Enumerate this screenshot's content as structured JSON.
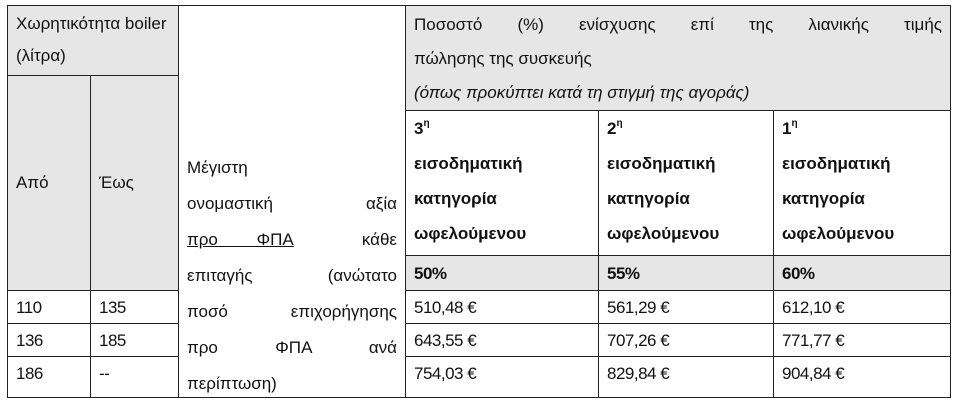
{
  "header": {
    "capacity_title": "Χωρητικότητα boiler (λίτρα)",
    "from_label": "Από",
    "to_label": "Έως",
    "max_value_lines": [
      "Μέγιστη",
      "ονομαστική αξία",
      "προ ΦΠΑ κάθε",
      "επιταγής (ανώτατο",
      "ποσό επιχορήγησης",
      "προ ΦΠΑ ανά",
      "περίπτωση)"
    ],
    "percentage_title": "Ποσοστό (%) ενίσχυσης  επί της λιανικής τιμής πώλησης της συσκευής",
    "percentage_note": "(όπως προκύπτει κατά τη στιγμή της αγοράς)",
    "categories": [
      {
        "num": "3",
        "sup": "η",
        "label": "εισοδηματική κατηγορία ωφελούμενου",
        "percent": "50%"
      },
      {
        "num": "2",
        "sup": "η",
        "label": "εισοδηματική κατηγορία ωφελούμενου",
        "percent": "55%"
      },
      {
        "num": "1",
        "sup": "η",
        "label": "εισοδηματική κατηγορία ωφελούμενου",
        "percent": "60%"
      }
    ]
  },
  "rows": [
    {
      "from": "110",
      "to": "135",
      "values": [
        "510,48 €",
        "561,29 €",
        "612,10 €"
      ]
    },
    {
      "from": "136",
      "to": "185",
      "values": [
        "643,55 €",
        "707,26 €",
        "771,77 €"
      ]
    },
    {
      "from": "186",
      "to": "--",
      "values": [
        "754,03 €",
        "829,84 €",
        "904,84 €"
      ]
    }
  ],
  "colors": {
    "header_bg": "#e6e6e6",
    "border": "#222222"
  }
}
